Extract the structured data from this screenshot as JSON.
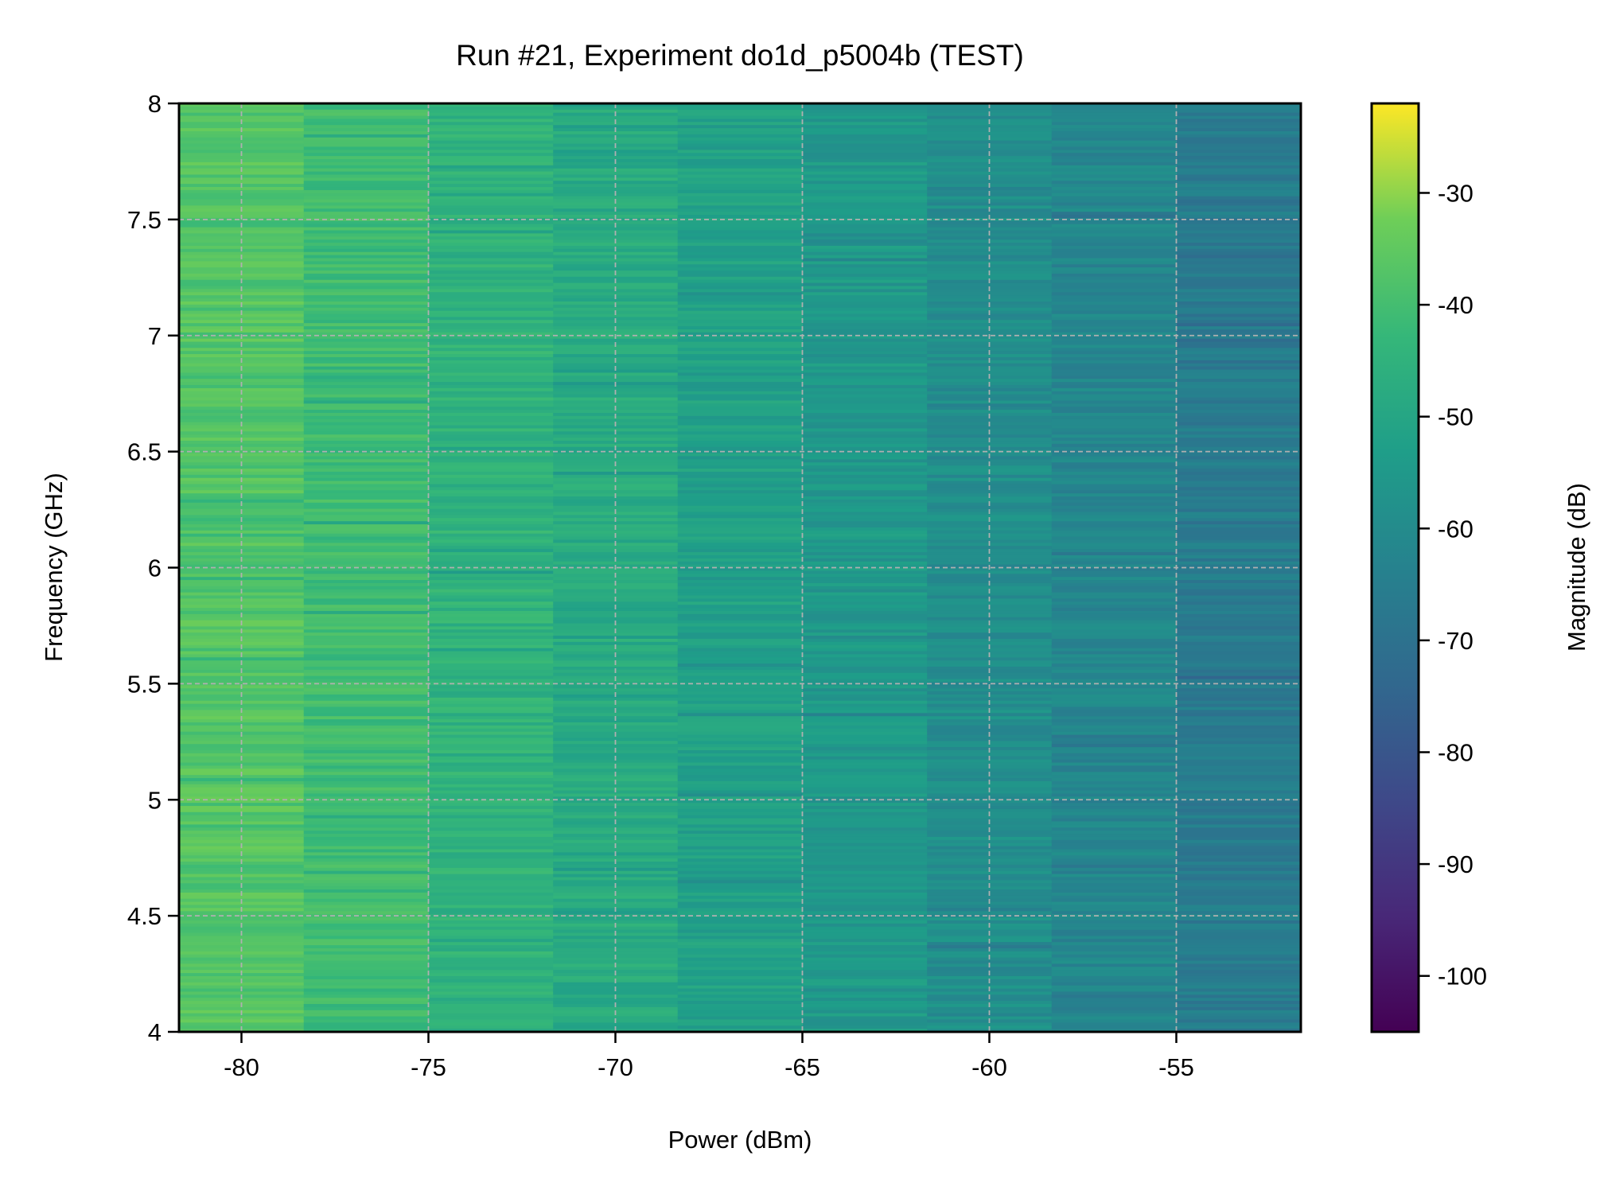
{
  "chart_data": {
    "type": "heatmap",
    "title": "Run #21, Experiment do1d_p5004b (TEST)",
    "xlabel": "Power (dBm)",
    "ylabel": "Frequency (GHz)",
    "colorbar_label": "Magnitude (dB)",
    "xlim": [
      -81.67,
      -51.67
    ],
    "ylim": [
      4,
      8
    ],
    "x_ticks": [
      -80,
      -75,
      -70,
      -65,
      -60,
      -55
    ],
    "x_tick_labels": [
      "-80",
      "-75",
      "-70",
      "-65",
      "-60",
      "-55"
    ],
    "y_ticks": [
      4,
      4.5,
      5,
      5.5,
      6,
      6.5,
      7,
      7.5,
      8
    ],
    "y_tick_labels": [
      "4",
      "4.5",
      "5",
      "5.5",
      "6",
      "6.5",
      "7",
      "7.5",
      "8"
    ],
    "colorbar_range": [
      -105,
      -22
    ],
    "colorbar_ticks": [
      -30,
      -40,
      -50,
      -60,
      -70,
      -80,
      -90,
      -100
    ],
    "colorbar_tick_labels": [
      "-30",
      "-40",
      "-50",
      "-60",
      "-70",
      "-80",
      "-90",
      "-100"
    ],
    "colormap": "viridis",
    "grid": true,
    "x": [
      -80,
      -76.67,
      -73.33,
      -70,
      -66.67,
      -63.33,
      -60,
      -56.67,
      -53.33
    ],
    "column_mean_values": [
      -37,
      -41,
      -45,
      -48,
      -52,
      -55,
      -59,
      -62,
      -66
    ],
    "noise_spread_db": 8
  }
}
